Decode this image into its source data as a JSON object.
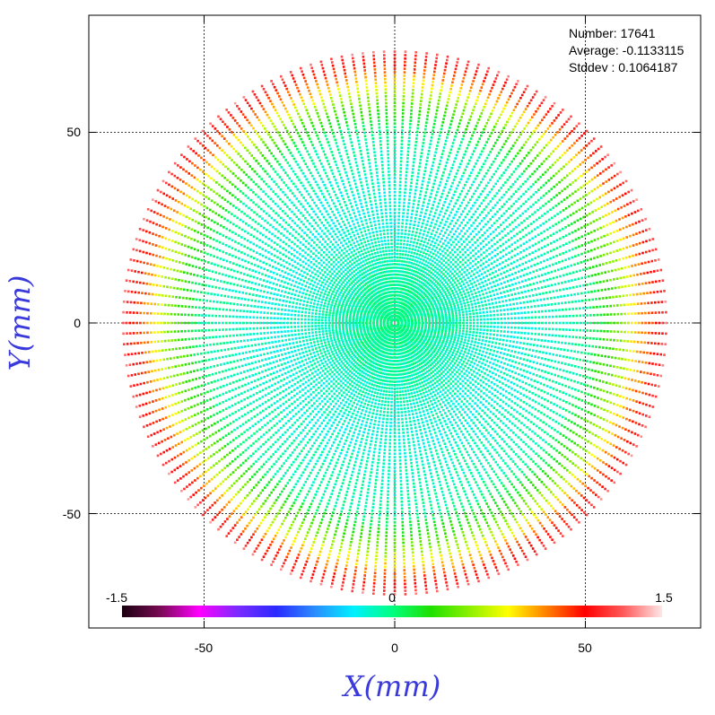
{
  "stats": {
    "number": "Number: 17641",
    "average": "Average: -0.1133115",
    "stddev": "Stddev : 0.1064187"
  },
  "chart_data": {
    "type": "scatter",
    "title": "",
    "xlabel": "X(mm)",
    "ylabel": "Y(mm)",
    "xlim": [
      -80,
      80
    ],
    "ylim": [
      -80,
      80
    ],
    "x_ticks": [
      -50,
      0,
      50
    ],
    "y_ticks": [
      -50,
      0,
      50
    ],
    "x_tick_labels": [
      "-50",
      "0",
      "50"
    ],
    "y_tick_labels": [
      "50",
      "0",
      "-50"
    ],
    "grid": true,
    "pattern": "radial lines of points from center out to r ≈ 72 mm",
    "num_rays": 160,
    "max_radius": 72,
    "value_by_radius": [
      {
        "r": 0,
        "value": 0.0
      },
      {
        "r": 30,
        "value": -0.15
      },
      {
        "r": 50,
        "value": -0.05
      },
      {
        "r": 60,
        "value": 0.45
      },
      {
        "r": 66,
        "value": 0.9
      },
      {
        "r": 70,
        "value": 1.15
      },
      {
        "r": 72,
        "value": 1.4
      }
    ],
    "colorbar": {
      "min": -1.5,
      "max": 1.5,
      "min_label": "-1.5",
      "mid_label": "0",
      "max_label": "1.5",
      "colors": [
        "#1a0010",
        "#7a0a55",
        "#ff00ff",
        "#7a2aff",
        "#2a2aff",
        "#2a8cff",
        "#00f0ff",
        "#00ff80",
        "#1ee000",
        "#8cf000",
        "#ffff00",
        "#ff8000",
        "#ff0000",
        "#ff5a5a",
        "#ffe6e6"
      ]
    }
  }
}
